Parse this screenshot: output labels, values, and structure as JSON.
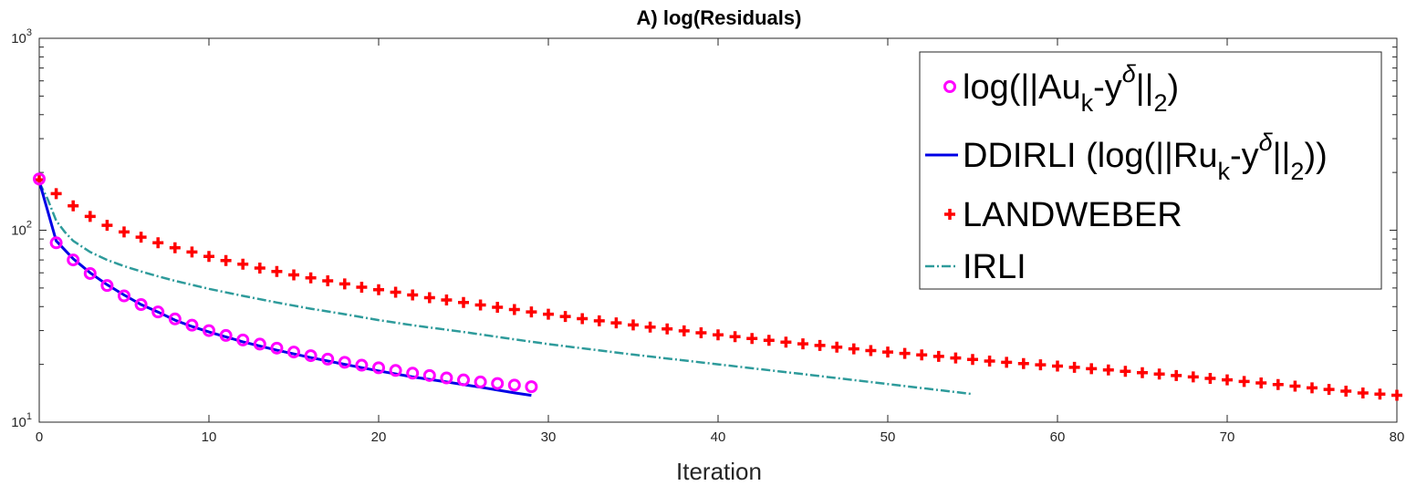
{
  "colors": {
    "observed": "#ff00ff",
    "ddirli": "#0000e6",
    "landweber": "#ff0000",
    "irli": "#2e9b9b",
    "axis": "#262626"
  },
  "chart_data": {
    "type": "line",
    "title": "A) log(Residuals)",
    "xlabel": "Iteration",
    "ylabel": "",
    "xlim": [
      0,
      80
    ],
    "ylim": [
      10,
      1000
    ],
    "yscale": "log",
    "xticks": [
      "0",
      "10",
      "20",
      "30",
      "40",
      "50",
      "60",
      "70",
      "80"
    ],
    "yticks": [
      {
        "base": "10",
        "exp": "1"
      },
      {
        "base": "10",
        "exp": "2"
      },
      {
        "base": "10",
        "exp": "3"
      }
    ],
    "grid": false,
    "legend_position": "top-right",
    "legend": [
      {
        "pre": "log(||Au",
        "sub": "k",
        "mid": "-y",
        "sup": "δ",
        "post": "||",
        "sub2": "2",
        "end": ")"
      },
      {
        "pre": "DDIRLI (log(||Ru",
        "sub": "k",
        "mid": "-y",
        "sup": "δ",
        "post": "||",
        "sub2": "2",
        "end": "))"
      },
      {
        "pre": "LANDWEBER",
        "sub": "",
        "mid": "",
        "sup": "",
        "post": "",
        "sub2": "",
        "end": ""
      },
      {
        "pre": "IRLI",
        "sub": "",
        "mid": "",
        "sup": "",
        "post": "",
        "sub2": "",
        "end": ""
      }
    ],
    "series": [
      {
        "style": "circle-markers",
        "x": [
          0,
          1,
          2,
          3,
          4,
          5,
          6,
          7,
          8,
          9,
          10,
          11,
          12,
          13,
          14,
          15,
          16,
          17,
          18,
          19,
          20,
          21,
          22,
          23,
          24,
          25,
          26,
          27,
          28,
          29
        ],
        "y": [
          185,
          86,
          70,
          59.5,
          51.5,
          45.5,
          41,
          37.5,
          34.5,
          32,
          30,
          28.3,
          26.8,
          25.5,
          24.3,
          23.2,
          22.2,
          21.3,
          20.5,
          19.8,
          19.2,
          18.6,
          18,
          17.5,
          17,
          16.6,
          16.2,
          15.9,
          15.6,
          15.3
        ]
      },
      {
        "style": "solid-line",
        "x": [
          0,
          1,
          2,
          3,
          4,
          5,
          6,
          7,
          8,
          9,
          10,
          12,
          14,
          16,
          18,
          20,
          22,
          24,
          26,
          28,
          29
        ],
        "y": [
          180,
          88,
          71,
          60,
          52,
          46,
          41,
          37.5,
          34,
          31.5,
          29.5,
          26.2,
          23.7,
          21.7,
          20,
          18.5,
          17.2,
          16.2,
          15.2,
          14.2,
          13.8
        ]
      },
      {
        "style": "plus-markers",
        "x": [
          0,
          1,
          2,
          3,
          4,
          5,
          6,
          7,
          8,
          9,
          10,
          11,
          12,
          13,
          14,
          15,
          16,
          17,
          18,
          19,
          20,
          21,
          22,
          23,
          24,
          25,
          26,
          27,
          28,
          29,
          30,
          31,
          32,
          33,
          34,
          35,
          36,
          37,
          38,
          39,
          40,
          41,
          42,
          43,
          44,
          45,
          46,
          47,
          48,
          49,
          50,
          51,
          52,
          53,
          54,
          55,
          56,
          57,
          58,
          59,
          60,
          61,
          62,
          63,
          64,
          65,
          66,
          67,
          68,
          69,
          70,
          71,
          72,
          73,
          74,
          75,
          76,
          77,
          78,
          79,
          80
        ],
        "y": [
          183,
          155,
          134,
          118,
          106,
          98,
          92,
          86,
          81,
          77,
          73,
          69.5,
          66.5,
          63.5,
          61,
          58.5,
          56.5,
          54.5,
          52.5,
          50.5,
          49,
          47.5,
          46,
          44.5,
          43.3,
          42,
          40.8,
          39.7,
          38.6,
          37.5,
          36.5,
          35.5,
          34.6,
          33.7,
          32.9,
          32.1,
          31.3,
          30.6,
          29.9,
          29.2,
          28.5,
          27.9,
          27.3,
          26.7,
          26.1,
          25.6,
          25.1,
          24.6,
          24.1,
          23.6,
          23.2,
          22.8,
          22.4,
          22,
          21.6,
          21.2,
          20.8,
          20.5,
          20.2,
          19.9,
          19.6,
          19.3,
          19,
          18.7,
          18.4,
          18.1,
          17.8,
          17.5,
          17.2,
          16.9,
          16.6,
          16.3,
          16,
          15.7,
          15.4,
          15.1,
          14.8,
          14.5,
          14.2,
          14,
          13.8
        ]
      },
      {
        "style": "dash-dot-line",
        "x": [
          0,
          0.5,
          1,
          1.5,
          2,
          3,
          4,
          5,
          6,
          7,
          8,
          10,
          12,
          14,
          16,
          18,
          20,
          22,
          25,
          28,
          30,
          35,
          40,
          45,
          50,
          55
        ],
        "y": [
          178,
          145,
          112,
          98,
          88,
          77,
          70,
          65,
          61,
          57.5,
          54.5,
          49.5,
          45.5,
          42,
          39,
          36.5,
          34,
          32,
          29.5,
          27,
          25.5,
          22.5,
          20,
          17.8,
          15.8,
          14
        ]
      }
    ]
  }
}
